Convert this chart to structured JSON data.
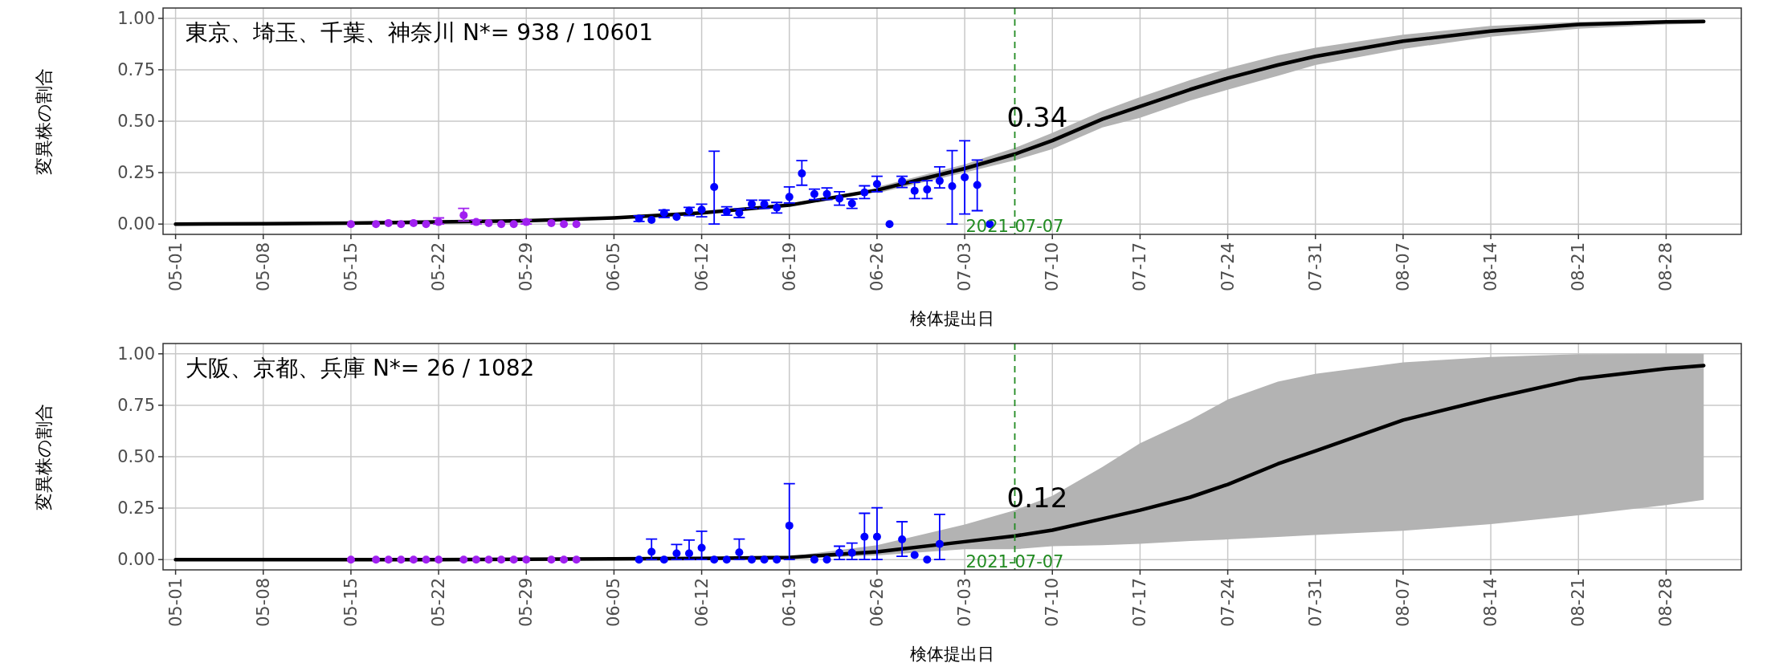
{
  "chart_data": [
    {
      "type": "line",
      "xlabel": "検体提出日",
      "ylabel": "変異株の割合",
      "grid": true,
      "xlim": [
        "2021-04-30",
        "2021-09-03"
      ],
      "xticks": [
        {
          "value": "2021-05-01",
          "label": "05-01"
        },
        {
          "value": "2021-05-08",
          "label": "05-08"
        },
        {
          "value": "2021-05-15",
          "label": "05-15"
        },
        {
          "value": "2021-05-22",
          "label": "05-22"
        },
        {
          "value": "2021-05-29",
          "label": "05-29"
        },
        {
          "value": "2021-06-05",
          "label": "06-05"
        },
        {
          "value": "2021-06-12",
          "label": "06-12"
        },
        {
          "value": "2021-06-19",
          "label": "06-19"
        },
        {
          "value": "2021-06-26",
          "label": "06-26"
        },
        {
          "value": "2021-07-03",
          "label": "07-03"
        },
        {
          "value": "2021-07-10",
          "label": "07-10"
        },
        {
          "value": "2021-07-17",
          "label": "07-17"
        },
        {
          "value": "2021-07-24",
          "label": "07-24"
        },
        {
          "value": "2021-07-31",
          "label": "07-31"
        },
        {
          "value": "2021-08-07",
          "label": "08-07"
        },
        {
          "value": "2021-08-14",
          "label": "08-14"
        },
        {
          "value": "2021-08-21",
          "label": "08-21"
        },
        {
          "value": "2021-08-28",
          "label": "08-28"
        }
      ],
      "ylim": [
        -0.05,
        1.05
      ],
      "yticks": [
        {
          "value": 0,
          "label": "0.00"
        },
        {
          "value": 0.25,
          "label": "0.25"
        },
        {
          "value": 0.5,
          "label": "0.50"
        },
        {
          "value": 0.75,
          "label": "0.75"
        },
        {
          "value": 1,
          "label": "1.00"
        }
      ],
      "ref_lines": [
        {
          "axis": "x",
          "value": "2021-07-07",
          "label": "2021-07-07",
          "color": "#228b22",
          "line_style": "dashed"
        }
      ],
      "annotations": [
        "東京、埼玉、千葉、神奈川 N*= 938 / 10601",
        {
          "text": "0.34",
          "x": "2021-07-07",
          "y": 0.34
        }
      ],
      "series": [
        {
          "color": "#000000",
          "x": [
            "2021-05-01",
            "2021-05-08",
            "2021-05-15",
            "2021-05-22",
            "2021-05-29",
            "2021-06-05",
            "2021-06-12",
            "2021-06-19",
            "2021-06-26",
            "2021-07-03",
            "2021-07-07",
            "2021-07-10",
            "2021-07-14",
            "2021-07-17",
            "2021-07-21",
            "2021-07-24",
            "2021-07-28",
            "2021-07-31",
            "2021-08-07",
            "2021-08-14",
            "2021-08-21",
            "2021-08-28",
            "2021-08-31"
          ],
          "values": [
            0,
            0.002,
            0.005,
            0.01,
            0.016,
            0.03,
            0.054,
            0.092,
            0.165,
            0.27,
            0.34,
            0.406,
            0.51,
            0.572,
            0.654,
            0.709,
            0.773,
            0.815,
            0.889,
            0.938,
            0.97,
            0.983,
            0.985
          ],
          "lower": [
            null,
            null,
            null,
            null,
            null,
            null,
            null,
            null,
            0.15,
            0.25,
            0.31,
            0.364,
            0.47,
            0.517,
            0.6,
            0.653,
            0.72,
            0.773,
            0.851,
            0.911,
            0.95,
            0.97,
            0.975
          ],
          "upper": [
            null,
            null,
            null,
            null,
            null,
            null,
            null,
            null,
            0.18,
            0.29,
            0.37,
            0.443,
            0.55,
            0.617,
            0.7,
            0.757,
            0.82,
            0.857,
            0.92,
            0.963,
            0.983,
            0.99,
            0.992
          ]
        },
        {
          "type": "scatter",
          "marker": "circle",
          "color": "#a020f0",
          "x": [
            "2021-05-15",
            "2021-05-17",
            "2021-05-18",
            "2021-05-19",
            "2021-05-20",
            "2021-05-21",
            "2021-05-22",
            "2021-05-24",
            "2021-05-25",
            "2021-05-26",
            "2021-05-27",
            "2021-05-28",
            "2021-05-29",
            "2021-05-31",
            "2021-06-01",
            "2021-06-02"
          ],
          "values": [
            0,
            0,
            0.005,
            0,
            0.005,
            0,
            0.01,
            0.043,
            0.01,
            0.005,
            0,
            0,
            0.01,
            0.005,
            0,
            0
          ],
          "errors": [
            null,
            null,
            null,
            null,
            null,
            null,
            [
              0,
              0.03
            ],
            [
              0.015,
              0.076
            ],
            [
              0,
              0.02
            ],
            null,
            null,
            null,
            [
              0,
              0.02
            ],
            null,
            null,
            null
          ]
        },
        {
          "type": "scatter",
          "marker": "circle",
          "color": "#0000ff",
          "x": [
            "2021-06-07",
            "2021-06-08",
            "2021-06-09",
            "2021-06-10",
            "2021-06-11",
            "2021-06-12",
            "2021-06-13",
            "2021-06-14",
            "2021-06-15",
            "2021-06-16",
            "2021-06-17",
            "2021-06-18",
            "2021-06-19",
            "2021-06-20",
            "2021-06-21",
            "2021-06-22",
            "2021-06-23",
            "2021-06-24",
            "2021-06-25",
            "2021-06-26",
            "2021-06-27",
            "2021-06-28",
            "2021-06-29",
            "2021-06-30",
            "2021-07-01",
            "2021-07-02",
            "2021-07-03",
            "2021-07-04",
            "2021-07-05"
          ],
          "values": [
            0.027,
            0.02,
            0.054,
            0.035,
            0.065,
            0.07,
            0.18,
            0.06,
            0.054,
            0.097,
            0.097,
            0.08,
            0.132,
            0.246,
            0.146,
            0.146,
            0.124,
            0.1,
            0.154,
            0.195,
            0,
            0.208,
            0.162,
            0.168,
            0.21,
            0.184,
            0.227,
            0.19,
            0
          ],
          "errors": [
            [
              0.013,
              0.04
            ],
            null,
            [
              0.032,
              0.068
            ],
            null,
            [
              0.041,
              0.081
            ],
            [
              0.035,
              0.097
            ],
            [
              0,
              0.354
            ],
            [
              0.043,
              0.084
            ],
            [
              0.032,
              0.073
            ],
            [
              0.076,
              0.116
            ],
            [
              0.076,
              0.116
            ],
            [
              0.054,
              0.105
            ],
            [
              0.103,
              0.181
            ],
            [
              0.189,
              0.308
            ],
            [
              0.119,
              0.17
            ],
            [
              0.119,
              0.176
            ],
            [
              0.092,
              0.157
            ],
            [
              0.076,
              0.122
            ],
            [
              0.124,
              0.186
            ],
            [
              0.157,
              0.232
            ],
            null,
            [
              0.178,
              0.232
            ],
            [
              0.124,
              0.203
            ],
            [
              0.124,
              0.211
            ],
            [
              0.176,
              0.278
            ],
            [
              0,
              0.357
            ],
            [
              0.049,
              0.405
            ],
            [
              0.065,
              0.311
            ],
            null
          ]
        }
      ]
    },
    {
      "type": "line",
      "xlabel": "検体提出日",
      "ylabel": "変異株の割合",
      "grid": true,
      "xlim": [
        "2021-04-30",
        "2021-09-03"
      ],
      "xticks": [
        {
          "value": "2021-05-01",
          "label": "05-01"
        },
        {
          "value": "2021-05-08",
          "label": "05-08"
        },
        {
          "value": "2021-05-15",
          "label": "05-15"
        },
        {
          "value": "2021-05-22",
          "label": "05-22"
        },
        {
          "value": "2021-05-29",
          "label": "05-29"
        },
        {
          "value": "2021-06-05",
          "label": "06-05"
        },
        {
          "value": "2021-06-12",
          "label": "06-12"
        },
        {
          "value": "2021-06-19",
          "label": "06-19"
        },
        {
          "value": "2021-06-26",
          "label": "06-26"
        },
        {
          "value": "2021-07-03",
          "label": "07-03"
        },
        {
          "value": "2021-07-10",
          "label": "07-10"
        },
        {
          "value": "2021-07-17",
          "label": "07-17"
        },
        {
          "value": "2021-07-24",
          "label": "07-24"
        },
        {
          "value": "2021-07-31",
          "label": "07-31"
        },
        {
          "value": "2021-08-07",
          "label": "08-07"
        },
        {
          "value": "2021-08-14",
          "label": "08-14"
        },
        {
          "value": "2021-08-21",
          "label": "08-21"
        },
        {
          "value": "2021-08-28",
          "label": "08-28"
        }
      ],
      "ylim": [
        -0.05,
        1.05
      ],
      "yticks": [
        {
          "value": 0,
          "label": "0.00"
        },
        {
          "value": 0.25,
          "label": "0.25"
        },
        {
          "value": 0.5,
          "label": "0.50"
        },
        {
          "value": 0.75,
          "label": "0.75"
        },
        {
          "value": 1,
          "label": "1.00"
        }
      ],
      "ref_lines": [
        {
          "axis": "x",
          "value": "2021-07-07",
          "label": "2021-07-07",
          "color": "#228b22",
          "line_style": "dashed"
        }
      ],
      "annotations": [
        "大阪、京都、兵庫 N*= 26 / 1082",
        {
          "text": "0.12",
          "x": "2021-07-07",
          "y": 0.12
        }
      ],
      "series": [
        {
          "color": "#000000",
          "x": [
            "2021-05-01",
            "2021-05-08",
            "2021-05-15",
            "2021-05-22",
            "2021-05-29",
            "2021-06-05",
            "2021-06-12",
            "2021-06-19",
            "2021-06-26",
            "2021-07-03",
            "2021-07-07",
            "2021-07-10",
            "2021-07-14",
            "2021-07-17",
            "2021-07-21",
            "2021-07-24",
            "2021-07-28",
            "2021-07-31",
            "2021-08-07",
            "2021-08-14",
            "2021-08-21",
            "2021-08-28",
            "2021-08-31"
          ],
          "values": [
            0,
            0,
            0,
            0,
            0.002,
            0.004,
            0.006,
            0.01,
            0.038,
            0.087,
            0.115,
            0.143,
            0.198,
            0.24,
            0.303,
            0.365,
            0.465,
            0.528,
            0.678,
            0.783,
            0.878,
            0.928,
            0.943
          ],
          "lower": [
            null,
            null,
            null,
            null,
            null,
            null,
            null,
            0.005,
            0.02,
            0.05,
            0.05,
            0.065,
            0.07,
            0.077,
            0.09,
            0.098,
            0.11,
            0.12,
            0.14,
            0.172,
            0.215,
            0.265,
            0.29
          ],
          "upper": [
            null,
            null,
            null,
            null,
            null,
            null,
            null,
            0.015,
            0.07,
            0.17,
            0.24,
            0.31,
            0.45,
            0.565,
            0.678,
            0.778,
            0.865,
            0.903,
            0.958,
            0.985,
            0.998,
            1,
            1
          ]
        },
        {
          "type": "scatter",
          "marker": "circle",
          "color": "#a020f0",
          "x": [
            "2021-05-15",
            "2021-05-17",
            "2021-05-18",
            "2021-05-19",
            "2021-05-20",
            "2021-05-21",
            "2021-05-22",
            "2021-05-24",
            "2021-05-25",
            "2021-05-26",
            "2021-05-27",
            "2021-05-28",
            "2021-05-29",
            "2021-05-31",
            "2021-06-01",
            "2021-06-02"
          ],
          "values": [
            0,
            0,
            0,
            0,
            0,
            0,
            0,
            0,
            0,
            0,
            0,
            0,
            0,
            0,
            0,
            0
          ]
        },
        {
          "type": "scatter",
          "marker": "circle",
          "color": "#0000ff",
          "x": [
            "2021-06-07",
            "2021-06-08",
            "2021-06-09",
            "2021-06-10",
            "2021-06-11",
            "2021-06-12",
            "2021-06-13",
            "2021-06-14",
            "2021-06-15",
            "2021-06-16",
            "2021-06-17",
            "2021-06-18",
            "2021-06-19",
            "2021-06-21",
            "2021-06-22",
            "2021-06-23",
            "2021-06-24",
            "2021-06-25",
            "2021-06-26",
            "2021-06-28",
            "2021-06-29",
            "2021-06-30",
            "2021-07-01"
          ],
          "values": [
            0,
            0.038,
            0,
            0.03,
            0.03,
            0.057,
            0,
            0,
            0.035,
            0,
            0,
            0,
            0.165,
            0,
            0,
            0.033,
            0.033,
            0.111,
            0.111,
            0.098,
            0.022,
            0,
            0.076
          ],
          "errors": [
            null,
            [
              0,
              0.1
            ],
            null,
            [
              0,
              0.073
            ],
            [
              0,
              0.095
            ],
            [
              0,
              0.138
            ],
            null,
            null,
            [
              0,
              0.1
            ],
            null,
            null,
            null,
            [
              0,
              0.369
            ],
            null,
            null,
            [
              0,
              0.065
            ],
            [
              0,
              0.08
            ],
            [
              0,
              0.225
            ],
            [
              0,
              0.252
            ],
            [
              0.016,
              0.184
            ],
            null,
            null,
            [
              0,
              0.22
            ]
          ]
        }
      ]
    }
  ]
}
